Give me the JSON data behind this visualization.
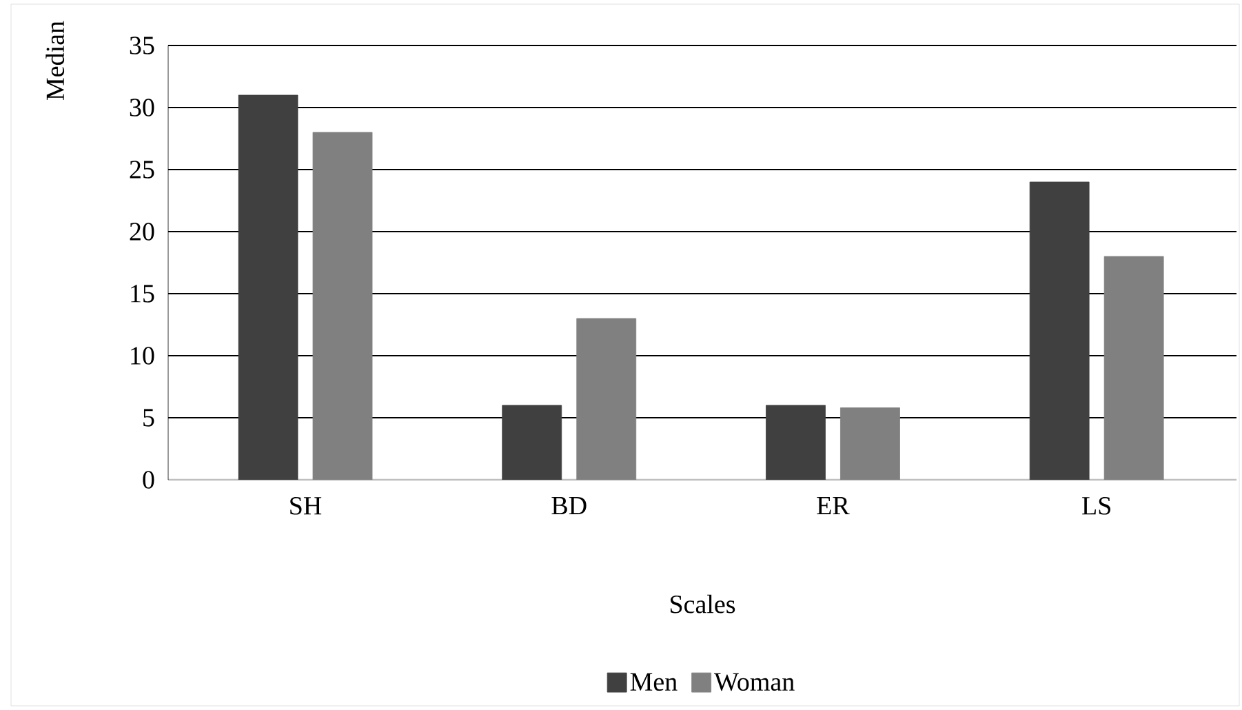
{
  "chart_data": {
    "type": "bar",
    "xlabel": "Scales",
    "ylabel": "Median",
    "categories": [
      "SH",
      "BD",
      "ER",
      "LS"
    ],
    "series": [
      {
        "name": "Men",
        "color": "#404040",
        "values": [
          31,
          6,
          6,
          24
        ]
      },
      {
        "name": "Woman",
        "color": "#808080",
        "values": [
          28,
          13,
          5.8,
          18
        ]
      }
    ],
    "ylim": [
      0,
      35
    ],
    "yticks": [
      0,
      5,
      10,
      15,
      20,
      25,
      30,
      35
    ],
    "grid": "y",
    "legend": "bottom"
  }
}
